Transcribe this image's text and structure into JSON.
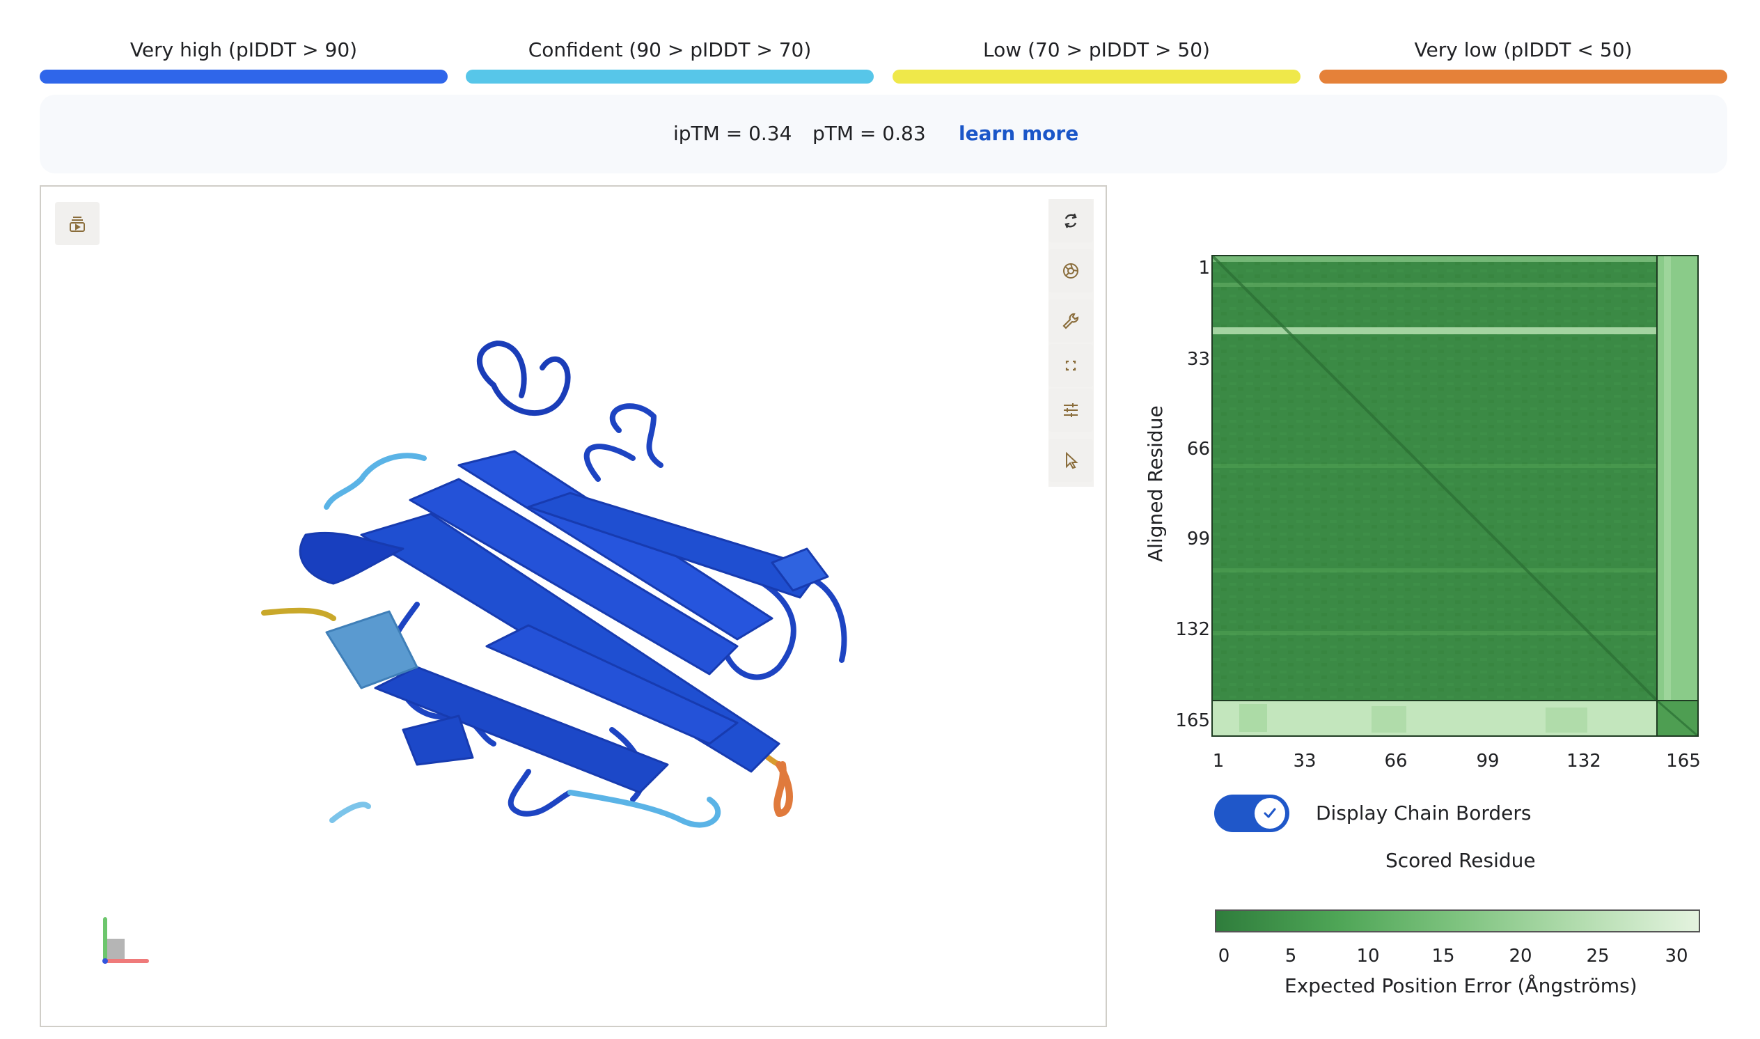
{
  "legend": [
    {
      "label": "Very high (pIDDT > 90)",
      "color": "#2f66ea"
    },
    {
      "label": "Confident (90 > pIDDT > 70)",
      "color": "#57c6e9"
    },
    {
      "label": "Low (70 > pIDDT > 50)",
      "color": "#efe84a"
    },
    {
      "label": "Very low (pIDDT < 50)",
      "color": "#e58139"
    }
  ],
  "metrics": {
    "iptm": "ipTM = 0.34",
    "ptm": "pTM = 0.83",
    "learn_more": "learn more"
  },
  "viewer_toolbar": [
    "refresh-icon",
    "camera-icon",
    "wrench-icon",
    "fullscreen-icon",
    "sliders-icon",
    "cursor-icon"
  ],
  "pae": {
    "y_axis_title": "Aligned Residue",
    "x_axis_title": "Scored Residue",
    "y_ticks": [
      "1",
      "33",
      "66",
      "99",
      "132",
      "165"
    ],
    "x_ticks": [
      "1",
      "33",
      "66",
      "99",
      "132",
      "165"
    ],
    "toggle_label": "Display Chain Borders",
    "toggle_on": true,
    "colorbar_ticks": [
      "0",
      "5",
      "10",
      "15",
      "20",
      "25",
      "30"
    ],
    "colorbar_title": "Expected Position Error (Ångströms)",
    "colors": {
      "low_error": "#2f7d3c",
      "high_error": "#e4f3df"
    }
  }
}
